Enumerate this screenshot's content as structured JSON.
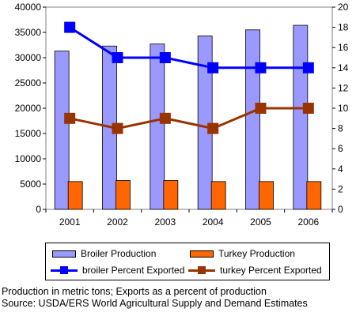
{
  "chart_data": {
    "type": "bar",
    "categories": [
      "2001",
      "2002",
      "2003",
      "2004",
      "2005",
      "2006"
    ],
    "series": [
      {
        "name": "Broiler Production",
        "type": "bar",
        "axis": "left",
        "color": "#9999FF",
        "values": [
          31300,
          32300,
          32700,
          34300,
          35500,
          36400
        ]
      },
      {
        "name": "Turkey Production",
        "type": "bar",
        "axis": "left",
        "color": "#FF6600",
        "values": [
          5500,
          5700,
          5700,
          5500,
          5500,
          5500
        ]
      },
      {
        "name": "broiler Percent Exported",
        "type": "line",
        "axis": "right",
        "color": "#0000FF",
        "marker": "square",
        "values": [
          18,
          15,
          15,
          14,
          14,
          14
        ]
      },
      {
        "name": "turkey Percent Exported",
        "type": "line",
        "axis": "right",
        "color": "#993300",
        "marker": "square",
        "values": [
          9,
          8,
          9,
          8,
          10,
          10
        ]
      }
    ],
    "ylim": [
      0,
      40000
    ],
    "yticks": [
      "0",
      "5000",
      "10000",
      "15000",
      "20000",
      "25000",
      "30000",
      "35000",
      "40000"
    ],
    "y2lim": [
      0,
      20
    ],
    "y2ticks": [
      "0",
      "2",
      "4",
      "6",
      "8",
      "10",
      "12",
      "14",
      "16",
      "18",
      "20"
    ],
    "grid": false,
    "legend_position": "bottom"
  },
  "legend": {
    "broiler_production": "Broiler Production",
    "turkey_production": "Turkey Production",
    "broiler_percent": "broiler Percent Exported",
    "turkey_percent": "turkey Percent Exported"
  },
  "notes": {
    "line1": "Production in metric tons; Exports as a percent of production",
    "line2": "Source:  USDA/ERS World Agricultural Supply and Demand Estimates"
  }
}
